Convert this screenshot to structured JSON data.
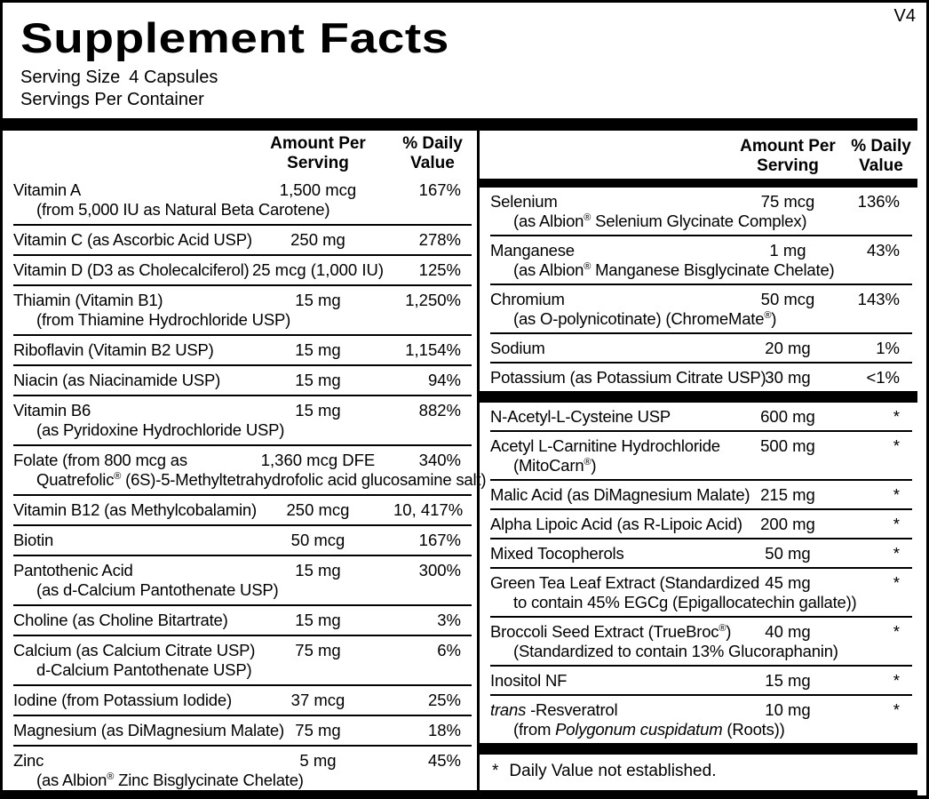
{
  "colors": {
    "ink": "#000000",
    "paper": "#ffffff"
  },
  "label": {
    "version": "V4",
    "title": "Supplement Facts",
    "serving_size_label": "Serving Size",
    "serving_size_value": "4 Capsules",
    "servings_per_container_label": "Servings Per Container",
    "column_header": {
      "amount_line1": "Amount Per",
      "amount_line2": "Serving",
      "dv_line1": "% Daily",
      "dv_line2": "Value"
    },
    "footnote": {
      "symbol": "*",
      "text": "Daily Value not established."
    },
    "left_column": {
      "rows": [
        {
          "name": "Vitamin A",
          "amount": "1,500 mcg",
          "dv": "167%",
          "sub": "(from 5,000 IU as Natural Beta Carotene)"
        },
        {
          "name": "Vitamin C (as Ascorbic Acid USP)",
          "amount": "250 mg",
          "dv": "278%"
        },
        {
          "name": "Vitamin D (D3 as Cholecalciferol)",
          "amount": "25 mcg (1,000 IU)",
          "dv": "125%"
        },
        {
          "name": "Thiamin (Vitamin B1)",
          "amount": "15 mg",
          "dv": "1,250%",
          "sub": "(from Thiamine Hydrochloride USP)"
        },
        {
          "name": "Riboflavin (Vitamin B2 USP)",
          "amount": "15 mg",
          "dv": "1,154%"
        },
        {
          "name": "Niacin (as Niacinamide USP)",
          "amount": "15 mg",
          "dv": "94%"
        },
        {
          "name": "Vitamin B6",
          "amount": "15 mg",
          "dv": "882%",
          "sub": "(as Pyridoxine Hydrochloride USP)"
        },
        {
          "name": "Folate (from 800 mcg as",
          "amount": "1,360 mcg DFE",
          "dv": "340%",
          "sub": [
            {
              "t": "Quatrefolic"
            },
            {
              "t": "®",
              "sup": true
            },
            {
              "t": " (6S)-5-Methyltetrahydrofolic acid glucosamine salt)"
            }
          ]
        },
        {
          "name": "Vitamin B12 (as Methylcobalamin)",
          "amount": "250 mcg",
          "dv": "10, 417%"
        },
        {
          "name": "Biotin",
          "amount": "50 mcg",
          "dv": "167%"
        },
        {
          "name": "Pantothenic Acid",
          "amount": "15 mg",
          "dv": "300%",
          "sub": "(as d-Calcium Pantothenate USP)"
        },
        {
          "name": "Choline (as Choline Bitartrate)",
          "amount": "15 mg",
          "dv": "3%"
        },
        {
          "name": "Calcium (as Calcium Citrate USP)",
          "amount": "75 mg",
          "dv": "6%",
          "sub": "d-Calcium Pantothenate USP)"
        },
        {
          "name": "Iodine (from Potassium Iodide)",
          "amount": "37 mcg",
          "dv": "25%"
        },
        {
          "name": "Magnesium (as DiMagnesium Malate)",
          "amount": "75 mg",
          "dv": "18%"
        },
        {
          "name": "Zinc",
          "amount": "5 mg",
          "dv": "45%",
          "sub": [
            {
              "t": "(as Albion"
            },
            {
              "t": "®",
              "sup": true
            },
            {
              "t": " Zinc Bisglycinate Chelate)"
            }
          ]
        }
      ]
    },
    "right_column": {
      "mineral_rows": [
        {
          "name": "Selenium",
          "amount": "75 mcg",
          "dv": "136%",
          "sub": [
            {
              "t": "(as Albion"
            },
            {
              "t": "®",
              "sup": true
            },
            {
              "t": " Selenium Glycinate Complex)"
            }
          ]
        },
        {
          "name": "Manganese",
          "amount": "1 mg",
          "dv": "43%",
          "sub": [
            {
              "t": "(as Albion"
            },
            {
              "t": "®",
              "sup": true
            },
            {
              "t": " Manganese Bisglycinate Chelate)"
            }
          ]
        },
        {
          "name": "Chromium",
          "amount": "50 mcg",
          "dv": "143%",
          "sub": [
            {
              "t": "(as O-polynicotinate) (ChromeMate"
            },
            {
              "t": "®",
              "sup": true
            },
            {
              "t": ")"
            }
          ]
        },
        {
          "name": "Sodium",
          "amount": "20 mg",
          "dv": "1%"
        },
        {
          "name": "Potassium (as Potassium Citrate USP)",
          "amount": "30 mg",
          "dv": "<1%"
        }
      ],
      "other_rows": [
        {
          "name": "N-Acetyl-L-Cysteine USP",
          "amount": "600 mg",
          "dv": "*"
        },
        {
          "name": "Acetyl L-Carnitine Hydrochloride",
          "amount": "500 mg",
          "dv": "*",
          "sub": [
            {
              "t": "(MitoCarn"
            },
            {
              "t": "®",
              "sup": true
            },
            {
              "t": ")"
            }
          ]
        },
        {
          "name": "Malic Acid (as DiMagnesium Malate)",
          "amount": "215 mg",
          "dv": "*"
        },
        {
          "name": "Alpha Lipoic Acid (as R-Lipoic Acid)",
          "amount": "200 mg",
          "dv": "*"
        },
        {
          "name": "Mixed Tocopherols",
          "amount": "50 mg",
          "dv": "*"
        },
        {
          "name": "Green Tea Leaf Extract (Standardized",
          "amount": "45 mg",
          "dv": "*",
          "sub": "to contain 45% EGCg (Epigallocatechin gallate))"
        },
        {
          "name": [
            {
              "t": "Broccoli Seed Extract (TrueBroc"
            },
            {
              "t": "®",
              "sup": true
            },
            {
              "t": ")"
            }
          ],
          "amount": "40 mg",
          "dv": "*",
          "sub": "(Standardized to contain 13% Glucoraphanin)"
        },
        {
          "name": "Inositol NF",
          "amount": "15 mg",
          "dv": "*"
        },
        {
          "name": [
            {
              "t": "trans",
              "i": true
            },
            {
              "t": " -Resveratrol"
            }
          ],
          "amount": "10 mg",
          "dv": "*",
          "sub": [
            {
              "t": "(from "
            },
            {
              "t": "Polygonum cuspidatum",
              "i": true
            },
            {
              "t": " (Roots))"
            }
          ]
        }
      ]
    }
  }
}
